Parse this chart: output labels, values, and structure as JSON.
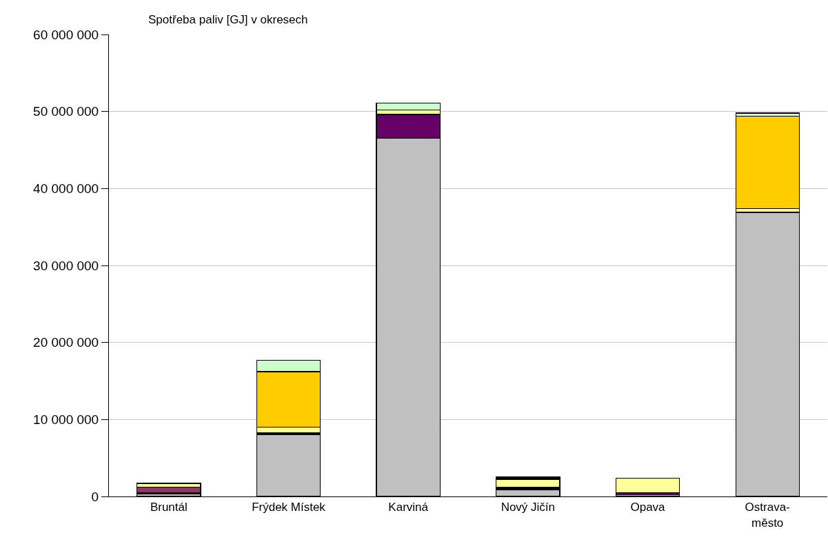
{
  "chart_data": {
    "type": "bar",
    "title": "Spotřeba paliv [GJ] v okresech",
    "stacked": true,
    "categories": [
      "Bruntál",
      "Frýdek Místek",
      "Karviná",
      "Nový Jičín",
      "Opava",
      "Ostrava-město"
    ],
    "series": [
      {
        "color": "#c0c0c0",
        "values": [
          300000,
          8000000,
          46500000,
          900000,
          200000,
          36900000
        ]
      },
      {
        "color": "#000000",
        "values": [
          200000,
          300000,
          null,
          300000,
          null,
          null
        ]
      },
      {
        "color": "#993366",
        "values": [
          700000,
          null,
          null,
          null,
          null,
          null
        ]
      },
      {
        "color": "#660066",
        "values": [
          null,
          null,
          3100000,
          null,
          300000,
          null
        ]
      },
      {
        "color": "#ffff99",
        "values": [
          500000,
          700000,
          600000,
          1000000,
          1900000,
          500000
        ]
      },
      {
        "color": "#000000",
        "values": [
          null,
          null,
          null,
          300000,
          null,
          null
        ]
      },
      {
        "color": "#ffcc00",
        "values": [
          null,
          7200000,
          null,
          null,
          null,
          12000000
        ]
      },
      {
        "color": "#ccffcc",
        "values": [
          null,
          1500000,
          900000,
          null,
          null,
          400000
        ]
      }
    ],
    "ylim": [
      0,
      60000000
    ],
    "yticks": [
      {
        "value": 0,
        "label": "0"
      },
      {
        "value": 10000000,
        "label": "10 000 000"
      },
      {
        "value": 20000000,
        "label": "20 000 000"
      },
      {
        "value": 30000000,
        "label": "30 000 000"
      },
      {
        "value": 40000000,
        "label": "40 000 000"
      },
      {
        "value": 50000000,
        "label": "50 000 000"
      },
      {
        "value": 60000000,
        "label": "60 000 000"
      }
    ],
    "grid": "y"
  }
}
